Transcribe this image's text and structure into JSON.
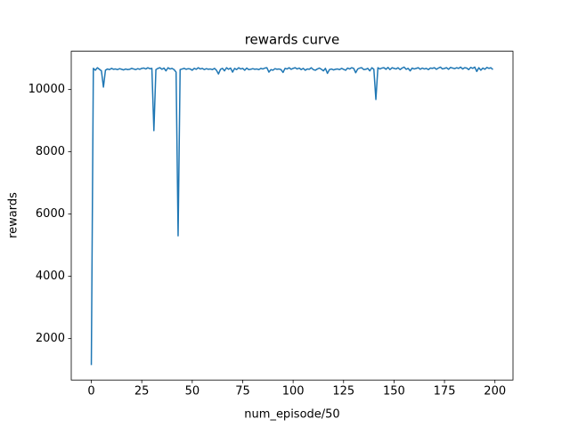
{
  "chart_data": {
    "type": "line",
    "title": "rewards curve",
    "x_label": "num_episode/50",
    "y_label": "rewards",
    "x": [
      0,
      1,
      2,
      3,
      4,
      5,
      6,
      7,
      8,
      9,
      10,
      11,
      12,
      13,
      14,
      15,
      16,
      17,
      18,
      19,
      20,
      21,
      22,
      23,
      24,
      25,
      26,
      27,
      28,
      29,
      30,
      31,
      32,
      33,
      34,
      35,
      36,
      37,
      38,
      39,
      40,
      41,
      42,
      43,
      44,
      45,
      46,
      47,
      48,
      49,
      50,
      51,
      52,
      53,
      54,
      55,
      56,
      57,
      58,
      59,
      60,
      61,
      62,
      63,
      64,
      65,
      66,
      67,
      68,
      69,
      70,
      71,
      72,
      73,
      74,
      75,
      76,
      77,
      78,
      79,
      80,
      81,
      82,
      83,
      84,
      85,
      86,
      87,
      88,
      89,
      90,
      91,
      92,
      93,
      94,
      95,
      96,
      97,
      98,
      99,
      100,
      101,
      102,
      103,
      104,
      105,
      106,
      107,
      108,
      109,
      110,
      111,
      112,
      113,
      114,
      115,
      116,
      117,
      118,
      119,
      120,
      121,
      122,
      123,
      124,
      125,
      126,
      127,
      128,
      129,
      130,
      131,
      132,
      133,
      134,
      135,
      136,
      137,
      138,
      139,
      140,
      141,
      142,
      143,
      144,
      145,
      146,
      147,
      148,
      149,
      150,
      151,
      152,
      153,
      154,
      155,
      156,
      157,
      158,
      159,
      160,
      161,
      162,
      163,
      164,
      165,
      166,
      167,
      168,
      169,
      170,
      171,
      172,
      173,
      174,
      175,
      176,
      177,
      178,
      179,
      180,
      181,
      182,
      183,
      184,
      185,
      186,
      187,
      188,
      189,
      190,
      191,
      192,
      193,
      194,
      195,
      196,
      197,
      198,
      199
    ],
    "series": [
      {
        "color": "#1f77b4",
        "values": [
          1150,
          10680,
          10620,
          10700,
          10650,
          10600,
          10080,
          10620,
          10660,
          10640,
          10680,
          10650,
          10660,
          10640,
          10670,
          10650,
          10630,
          10660,
          10640,
          10650,
          10680,
          10660,
          10640,
          10670,
          10650,
          10680,
          10690,
          10660,
          10700,
          10670,
          10680,
          8680,
          10640,
          10680,
          10700,
          10650,
          10690,
          10600,
          10700,
          10660,
          10680,
          10640,
          10560,
          5300,
          10640,
          10660,
          10680,
          10650,
          10670,
          10660,
          10620,
          10680,
          10650,
          10700,
          10660,
          10680,
          10640,
          10670,
          10650,
          10660,
          10640,
          10680,
          10620,
          10500,
          10650,
          10680,
          10600,
          10700,
          10650,
          10690,
          10560,
          10680,
          10640,
          10700,
          10660,
          10680,
          10620,
          10690,
          10640,
          10650,
          10670,
          10650,
          10660,
          10640,
          10680,
          10660,
          10690,
          10700,
          10560,
          10640,
          10620,
          10670,
          10650,
          10660,
          10640,
          10550,
          10680,
          10660,
          10700,
          10650,
          10680,
          10700,
          10660,
          10690,
          10640,
          10680,
          10620,
          10660,
          10650,
          10700,
          10640,
          10620,
          10660,
          10690,
          10650,
          10600,
          10680,
          10520,
          10640,
          10660,
          10630,
          10650,
          10660,
          10640,
          10680,
          10650,
          10620,
          10690,
          10660,
          10700,
          10680,
          10540,
          10660,
          10690,
          10700,
          10640,
          10650,
          10680,
          10600,
          10700,
          10650,
          9680,
          10700,
          10660,
          10690,
          10700,
          10650,
          10710,
          10640,
          10700,
          10680,
          10660,
          10700,
          10640,
          10690,
          10720,
          10650,
          10680,
          10600,
          10690,
          10660,
          10680,
          10700,
          10650,
          10690,
          10660,
          10680,
          10640,
          10690,
          10680,
          10700,
          10650,
          10690,
          10720,
          10660,
          10680,
          10700,
          10650,
          10710,
          10690,
          10670,
          10700,
          10680,
          10720,
          10660,
          10700,
          10690,
          10640,
          10710,
          10680,
          10720,
          10580,
          10700,
          10620,
          10690,
          10650,
          10710,
          10680,
          10700,
          10640
        ]
      }
    ],
    "xlim": [
      -9.95,
      208.95
    ],
    "xticks": [
      0,
      25,
      50,
      75,
      100,
      125,
      150,
      175,
      200
    ],
    "ylim": [
      670,
      11230
    ],
    "yticks": [
      2000,
      4000,
      6000,
      8000,
      10000
    ]
  }
}
